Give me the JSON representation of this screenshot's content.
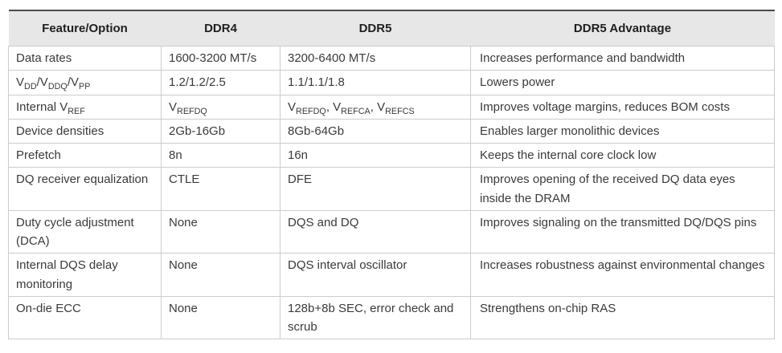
{
  "table": {
    "headers": [
      "Feature/Option",
      "DDR4",
      "DDR5",
      "DDR5 Advantage"
    ],
    "rows": [
      {
        "feature": "Data rates",
        "ddr4": "1600-3200 MT/s",
        "ddr5": "3200-6400 MT/s",
        "advantage": "Increases performance and bandwidth"
      },
      {
        "feature_html": "V<sub>DD</sub>/V<sub>DDQ</sub>/V<sub>PP</sub>",
        "ddr4": "1.2/1.2/2.5",
        "ddr5": "1.1/1.1/1.8",
        "advantage": "Lowers power"
      },
      {
        "feature_html": "Internal V<sub>REF</sub>",
        "ddr4_html": "V<sub>REFDQ</sub>",
        "ddr5_html": "V<sub>REFDQ</sub>, V<sub>REFCA</sub>, V<sub>REFCS</sub>",
        "advantage": "Improves voltage margins, reduces BOM costs"
      },
      {
        "feature": "Device densities",
        "ddr4": "2Gb-16Gb",
        "ddr5": "8Gb-64Gb",
        "advantage": "Enables larger monolithic devices"
      },
      {
        "feature": "Prefetch",
        "ddr4": "8n",
        "ddr5": "16n",
        "advantage": "Keeps the internal core clock low"
      },
      {
        "feature": "DQ receiver equalization",
        "ddr4": "CTLE",
        "ddr5": "DFE",
        "advantage": "Improves opening of the received DQ data eyes inside the DRAM"
      },
      {
        "feature": "Duty cycle adjustment (DCA)",
        "ddr4": "None",
        "ddr5": "DQS and DQ",
        "advantage": "Improves signaling on the transmitted DQ/DQS pins"
      },
      {
        "feature": "Internal DQS delay monitoring",
        "ddr4": "None",
        "ddr5": "DQS interval oscillator",
        "advantage": "Increases robustness against environmental changes"
      },
      {
        "feature": "On-die ECC",
        "ddr4": "None",
        "ddr5": "128b+8b SEC, error check and scrub",
        "advantage": "Strengthens on-chip RAS"
      }
    ],
    "colors": {
      "header_bg": "#e7e7e7",
      "row_border": "#cccccc",
      "top_border": "#4a4a4a",
      "body_text": "#3a3a3a",
      "header_text": "#1f1f1f"
    }
  }
}
